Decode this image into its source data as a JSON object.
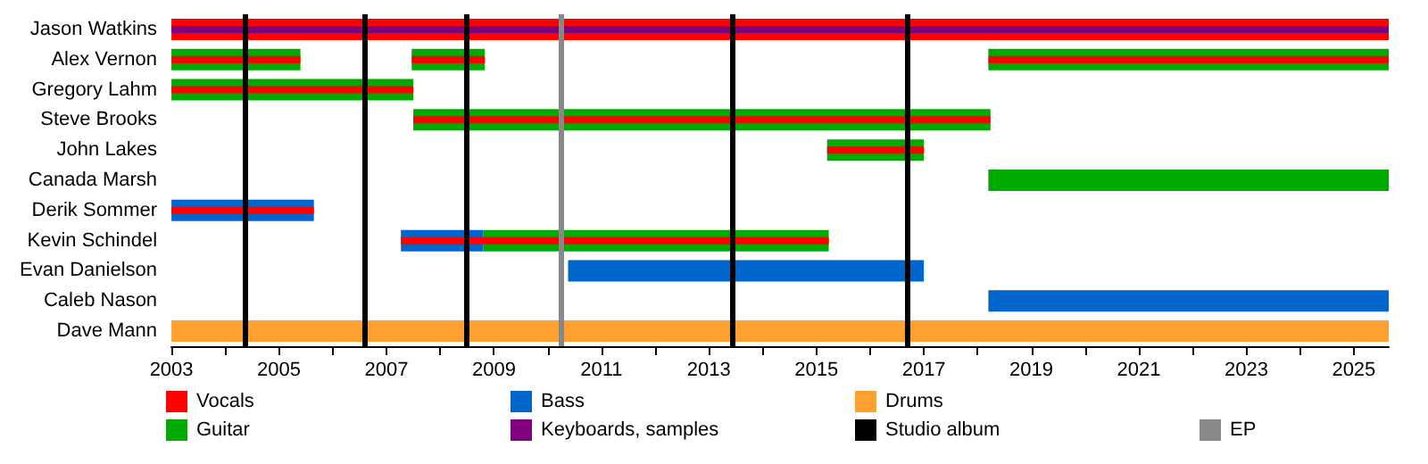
{
  "chart_data": {
    "type": "bar",
    "orientation": "horizontal",
    "categories": [
      "Jason Watkins",
      "Alex Vernon",
      "Gregory Lahm",
      "Steve Brooks",
      "John Lakes",
      "Canada Marsh",
      "Derik Sommer",
      "Kevin Schindel",
      "Evan Danielson",
      "Caleb Nason",
      "Dave Mann"
    ],
    "xlim": [
      2003,
      2025.65
    ],
    "xticks": [
      2003,
      {
        "value": 2004,
        "label": null
      },
      2005,
      {
        "value": 2006,
        "label": null
      },
      2007,
      {
        "value": 2008,
        "label": null
      },
      2009,
      {
        "value": 2010,
        "label": null
      },
      2011,
      {
        "value": 2012,
        "label": null
      },
      2013,
      {
        "value": 2014,
        "label": null
      },
      2015,
      {
        "value": 2016,
        "label": null
      },
      2017,
      {
        "value": 2018,
        "label": null
      },
      2019,
      {
        "value": 2020,
        "label": null
      },
      2021,
      {
        "value": 2022,
        "label": null
      },
      2023,
      {
        "value": 2024,
        "label": null
      },
      2025
    ],
    "series": [
      {
        "name": "Vocals",
        "color": "#ff0000",
        "base": [
          2003,
          null,
          null,
          null,
          null,
          null,
          null,
          null,
          null,
          null,
          null
        ],
        "values": [
          22.65,
          null,
          null,
          null,
          null,
          null,
          null,
          null,
          null,
          null,
          null
        ]
      },
      {
        "name": "Guitar",
        "color": "#00aa00",
        "base": [
          null,
          2003,
          2003,
          2007.5,
          2015.2,
          2018.2,
          null,
          2008.8,
          null,
          null,
          null
        ],
        "values": [
          null,
          2.4,
          4.5,
          10.74,
          1.8,
          7.45,
          null,
          6.43,
          null,
          null,
          null
        ]
      },
      {
        "color": "#00aa00",
        "base": [
          null,
          2007.47,
          null,
          null,
          null,
          null,
          null,
          null,
          null,
          null,
          null
        ],
        "values": [
          null,
          1.36,
          null,
          null,
          null,
          null,
          null,
          null,
          null,
          null,
          null
        ]
      },
      {
        "color": "#00aa00",
        "base": [
          null,
          2018.2,
          null,
          null,
          null,
          null,
          null,
          null,
          null,
          null,
          null
        ],
        "values": [
          null,
          7.45,
          null,
          null,
          null,
          null,
          null,
          null,
          null,
          null,
          null
        ]
      },
      {
        "name": "Bass",
        "color": "#0066cc",
        "base": [
          null,
          null,
          null,
          null,
          null,
          null,
          2003,
          2007.27,
          2010.38,
          2018.2,
          null
        ],
        "values": [
          null,
          null,
          null,
          null,
          null,
          null,
          2.65,
          1.53,
          6.62,
          7.45,
          null
        ]
      },
      {
        "name": "Keyboards, samples",
        "color": "#800080",
        "base": [
          2003,
          null,
          null,
          null,
          null,
          null,
          null,
          null,
          null,
          null,
          null
        ],
        "values": [
          22.65,
          null,
          null,
          null,
          null,
          null,
          null,
          null,
          null,
          null,
          null
        ]
      },
      {
        "name": "Drums",
        "color": "#ffa030",
        "base": [
          null,
          null,
          null,
          null,
          null,
          null,
          null,
          null,
          null,
          null,
          2003
        ],
        "values": [
          null,
          null,
          null,
          null,
          null,
          null,
          null,
          null,
          null,
          null,
          22.65
        ]
      },
      {
        "color": "#ff0000",
        "base": [
          null,
          2003,
          2003,
          2007.5,
          2015.2,
          null,
          2003,
          2007.27,
          null,
          null,
          null
        ],
        "values": [
          null,
          2.4,
          4.5,
          10.74,
          1.8,
          null,
          2.65,
          7.96,
          null,
          null,
          null
        ]
      },
      {
        "color": "#ff0000",
        "base": [
          null,
          2007.47,
          null,
          null,
          null,
          null,
          null,
          null,
          null,
          null,
          null
        ],
        "values": [
          null,
          1.36,
          null,
          null,
          null,
          null,
          null,
          null,
          null,
          null,
          null
        ]
      },
      {
        "color": "#ff0000",
        "base": [
          null,
          2018.2,
          null,
          null,
          null,
          null,
          null,
          null,
          null,
          null,
          null
        ],
        "values": [
          null,
          7.45,
          null,
          null,
          null,
          null,
          null,
          null,
          null,
          null,
          null
        ]
      }
    ],
    "ref_lines": [
      {
        "axis": "x",
        "value": 2004.36,
        "label": "Studio album",
        "color": "#000000"
      },
      {
        "axis": "x",
        "value": 2006.6,
        "color": "#000000"
      },
      {
        "axis": "x",
        "value": 2008.5,
        "color": "#000000"
      },
      {
        "axis": "x",
        "value": 2013.45,
        "color": "#000000"
      },
      {
        "axis": "x",
        "value": 2016.7,
        "color": "#000000"
      },
      {
        "axis": "x",
        "value": 2010.25,
        "label": "EP",
        "color": "#888888"
      }
    ],
    "legend": "bottom"
  }
}
